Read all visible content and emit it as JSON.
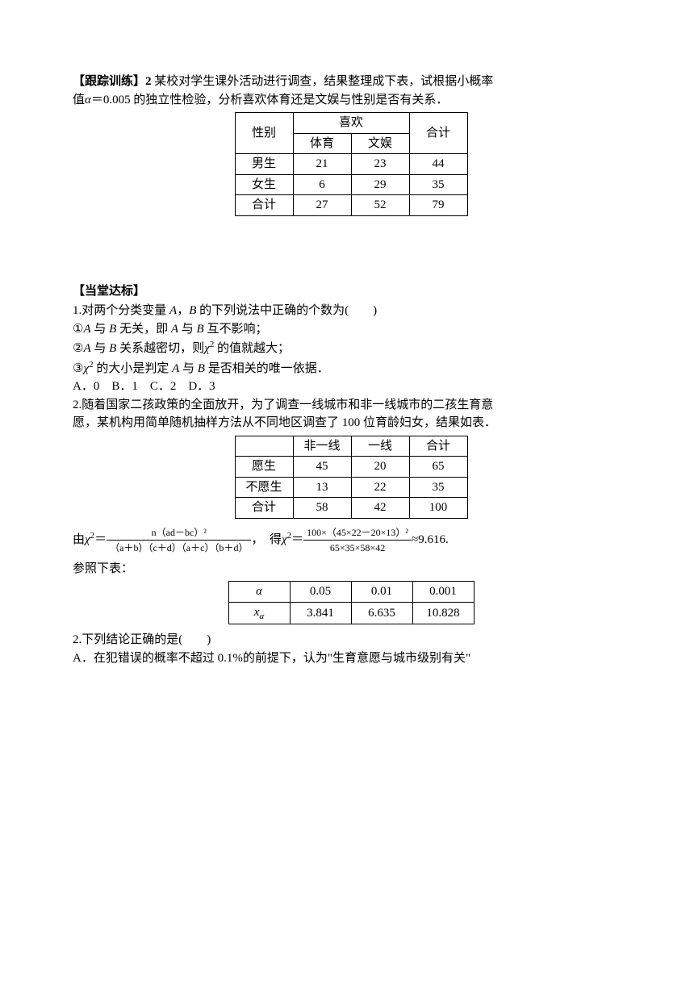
{
  "exercise1": {
    "title_prefix": "【跟踪训练】2 ",
    "line1": "某校对学生课外活动进行调查，结果整理成下表，试根据小概率",
    "line2_pre": "值",
    "line2_alpha": "α",
    "line2_eq": "＝",
    "line2_val": "0.005",
    "line2_post": " 的独立性检验，分析喜欢体育还是文娱与性别是否有关系．"
  },
  "table1": {
    "h_gender": "性别",
    "h_like": "喜欢",
    "h_total": "合计",
    "h_pe": "体育",
    "h_ent": "文娱",
    "r1": {
      "label": "男生",
      "c1": "21",
      "c2": "23",
      "c3": "44"
    },
    "r2": {
      "label": "女生",
      "c1": "6",
      "c2": "29",
      "c3": "35"
    },
    "r3": {
      "label": "合计",
      "c1": "27",
      "c2": "52",
      "c3": "79"
    }
  },
  "section2_title": "【当堂达标】",
  "q1": {
    "stem_a": "1.对两个分类变量 ",
    "A": "A",
    "comma": "，",
    "B": "B",
    "stem_b": " 的下列说法中正确的个数为(　　)",
    "s1a": "①",
    "s1b": " 与 ",
    "s1c": " 无关，即 ",
    "s1d": " 互不影响；",
    "s2a": "②",
    "s2b": " 关系越密切，则",
    "chi": "χ",
    "sq": "2",
    "s2c": " 的值就越大；",
    "s3a": "③",
    "s3b": " 的大小是判定 ",
    "s3c": " 是否相关的唯一依据．",
    "opts": "A．0　B．1　C．2　D．3"
  },
  "q2": {
    "line1": "2.随着国家二孩政策的全面放开，为了调查一线城市和非一线城市的二孩生育意",
    "line2": "愿，某机构用简单随机抽样方法从不同地区调查了 100 位育龄妇女，结果如表．"
  },
  "table2": {
    "h1": "非一线",
    "h2": "一线",
    "h3": "合计",
    "r1": {
      "label": "愿生",
      "c1": "45",
      "c2": "20",
      "c3": "65"
    },
    "r2": {
      "label": "不愿生",
      "c1": "13",
      "c2": "22",
      "c3": "35"
    },
    "r3": {
      "label": "合计",
      "c1": "58",
      "c2": "42",
      "c3": "100"
    }
  },
  "formula": {
    "lead": "由",
    "chi": "χ",
    "sq": "2",
    "eq": "＝",
    "num1": "n（ad－bc）²",
    "den1": "（a＋b）（c＋d）（a＋c）（b＋d）",
    "mid": "，　得",
    "num2": "100×（45×22－20×13）²",
    "den2": "65×35×58×42",
    "approx": "≈9.616."
  },
  "ref_line": "参照下表：",
  "table3": {
    "r1": {
      "h": "α",
      "c1": "0.05",
      "c2": "0.01",
      "c3": "0.001"
    },
    "r2": {
      "h_base": "x",
      "h_sub": "α",
      "c1": "3.841",
      "c2": "6.635",
      "c3": "10.828"
    }
  },
  "q2b": {
    "stem": "2.下列结论正确的是(　　)",
    "optA": "A．在犯错误的概率不超过 0.1%的前提下，认为\"生育意愿与城市级别有关\""
  }
}
